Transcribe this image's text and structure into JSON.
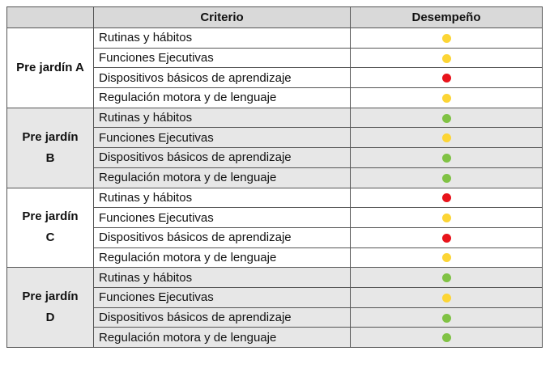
{
  "table": {
    "header": [
      "",
      "Criterio",
      "Desempeño"
    ],
    "groups": [
      {
        "name": "Pre jardín A",
        "rows": [
          {
            "criterion": "Rutinas y hábitos",
            "color": "#fcd535"
          },
          {
            "criterion": "Funciones Ejecutivas",
            "color": "#fcd535"
          },
          {
            "criterion": "Dispositivos básicos de aprendizaje",
            "color": "#e8141c"
          },
          {
            "criterion": "Regulación motora y de lenguaje",
            "color": "#fcd535"
          }
        ]
      },
      {
        "name": "Pre jardín B",
        "rows": [
          {
            "criterion": "Rutinas y hábitos",
            "color": "#80c244"
          },
          {
            "criterion": "Funciones Ejecutivas",
            "color": "#fcd535"
          },
          {
            "criterion": "Dispositivos básicos de aprendizaje",
            "color": "#80c244"
          },
          {
            "criterion": "Regulación motora y de lenguaje",
            "color": "#80c244"
          }
        ]
      },
      {
        "name": "Pre jardín C",
        "rows": [
          {
            "criterion": "Rutinas y hábitos",
            "color": "#e8141c"
          },
          {
            "criterion": "Funciones Ejecutivas",
            "color": "#fcd535"
          },
          {
            "criterion": "Dispositivos básicos de aprendizaje",
            "color": "#e8141c"
          },
          {
            "criterion": "Regulación motora y de lenguaje",
            "color": "#fcd535"
          }
        ]
      },
      {
        "name": "Pre jardín D",
        "rows": [
          {
            "criterion": "Rutinas y hábitos",
            "color": "#80c244"
          },
          {
            "criterion": "Funciones Ejecutivas",
            "color": "#fcd535"
          },
          {
            "criterion": "Dispositivos básicos de aprendizaje",
            "color": "#80c244"
          },
          {
            "criterion": "Regulación motora y de lenguaje",
            "color": "#80c244"
          }
        ]
      }
    ]
  }
}
